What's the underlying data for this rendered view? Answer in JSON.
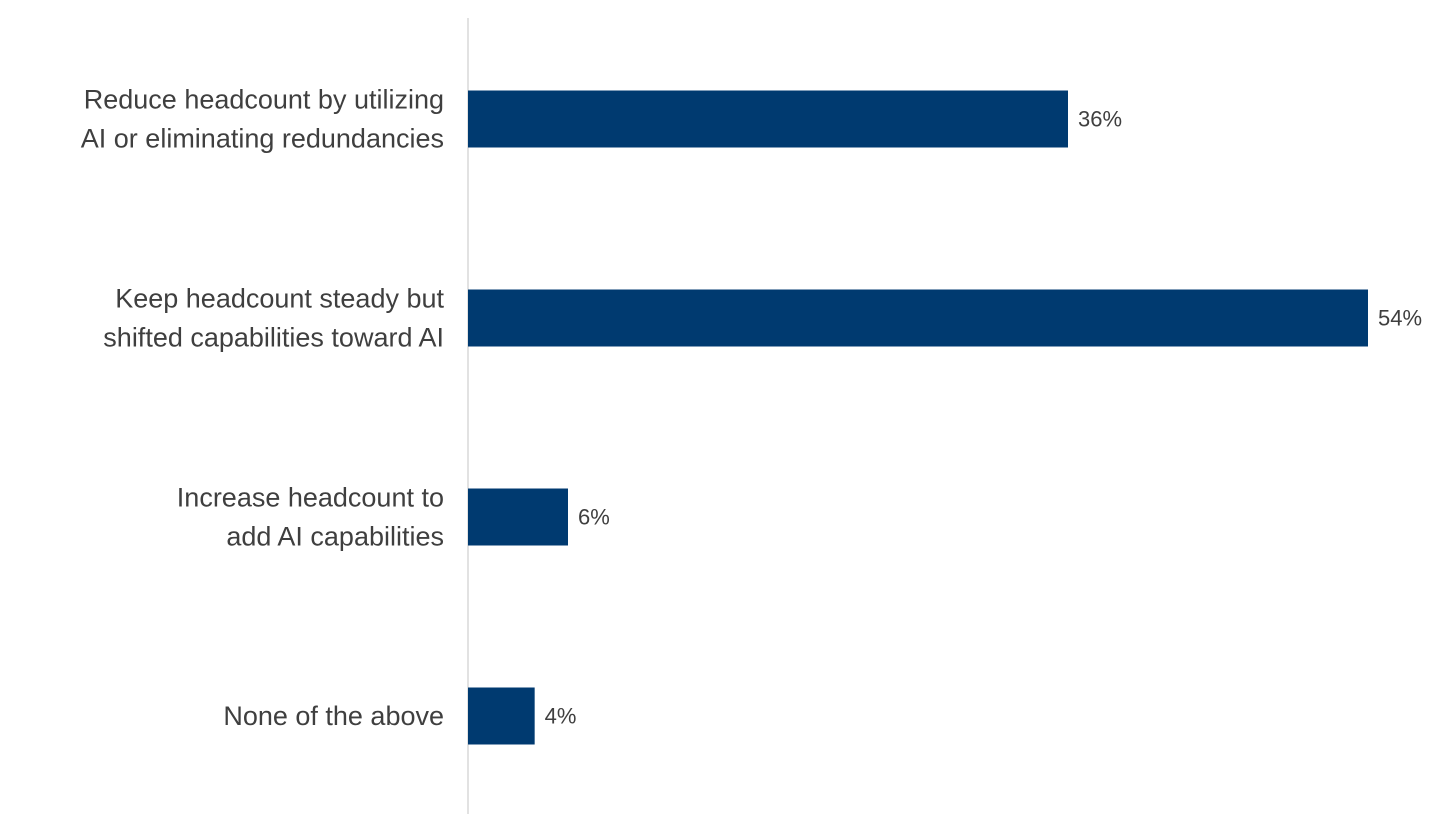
{
  "chart_data": {
    "type": "bar",
    "orientation": "horizontal",
    "categories": [
      [
        "Reduce headcount by utilizing",
        "AI or eliminating redundancies"
      ],
      [
        "Keep headcount steady but",
        "shifted capabilities toward AI"
      ],
      [
        "Increase headcount to",
        "add AI capabilities"
      ],
      [
        "None of the above"
      ]
    ],
    "values": [
      36,
      54,
      6,
      4
    ],
    "value_labels": [
      "36%",
      "54%",
      "6%",
      "4%"
    ],
    "unit": "%",
    "title": "",
    "xlabel": "",
    "ylabel": "",
    "xlim": [
      0,
      54
    ],
    "grid": false,
    "legend": "none",
    "colors": {
      "bar": "#003a70",
      "axis": "#d9d9d9",
      "text": "#3f3f3f"
    }
  }
}
